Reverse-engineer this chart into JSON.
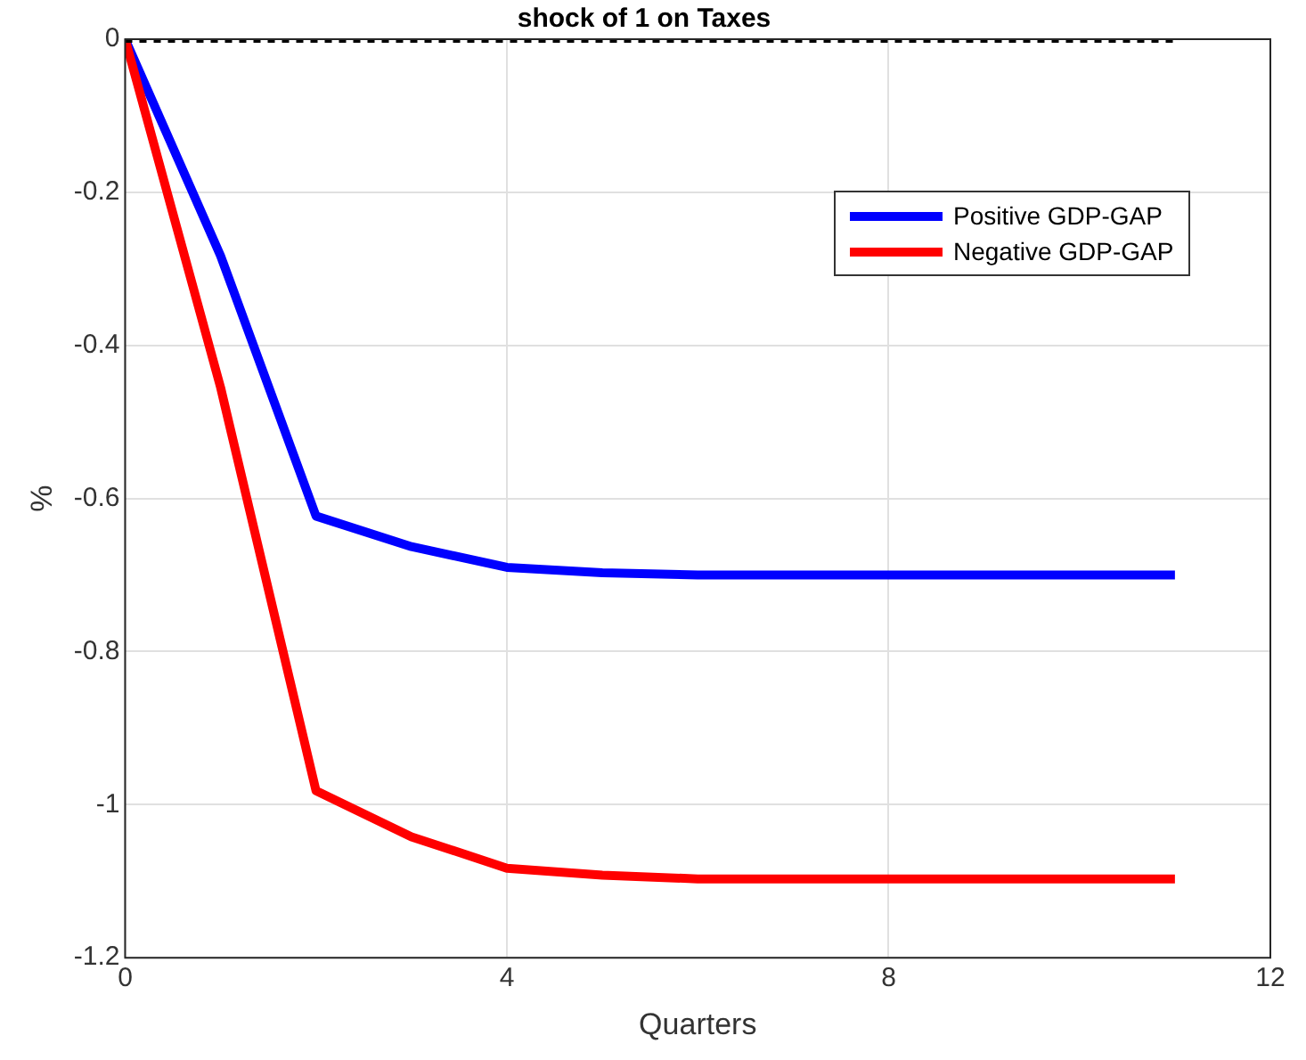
{
  "chart_data": {
    "type": "line",
    "title": "shock of 1 on Taxes",
    "xlabel": "Quarters",
    "ylabel": "%",
    "x": [
      0,
      1,
      2,
      3,
      4,
      5,
      6,
      7,
      8,
      9,
      10,
      11
    ],
    "series": [
      {
        "name": "Positive GDP-GAP",
        "color": "#0000ff",
        "values": [
          0,
          -0.283,
          -0.623,
          -0.663,
          -0.69,
          -0.697,
          -0.7,
          -0.7,
          -0.7,
          -0.7,
          -0.7,
          -0.7
        ]
      },
      {
        "name": "Negative GDP-GAP",
        "color": "#ff0000",
        "values": [
          0,
          -0.455,
          -0.982,
          -1.042,
          -1.083,
          -1.092,
          -1.097,
          -1.097,
          -1.097,
          -1.097,
          -1.097,
          -1.097
        ]
      },
      {
        "color": "#000000",
        "line_style": "dotted",
        "values": [
          0,
          0,
          0,
          0,
          0,
          0,
          0,
          0,
          0,
          0,
          0,
          0
        ]
      }
    ],
    "xlim": [
      0,
      12
    ],
    "xticks": [
      0,
      4,
      8,
      12
    ],
    "ylim": [
      -1.2,
      0
    ],
    "yticks": [
      -1.2,
      -1,
      -0.8,
      -0.6,
      -0.4,
      -0.2,
      0
    ],
    "grid": true,
    "legend": "top right",
    "marker": "none",
    "line_style": "solid"
  }
}
